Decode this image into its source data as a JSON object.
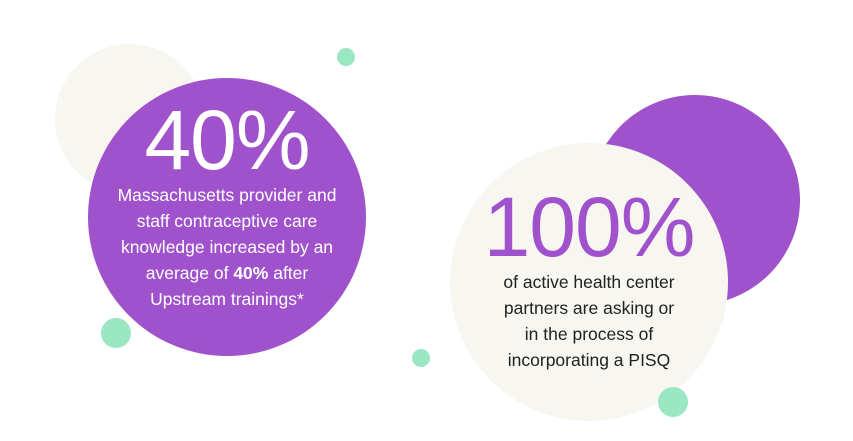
{
  "colors": {
    "purple": "#a052cc",
    "cream": "#f7f6f0",
    "mint": "#9be6c3"
  },
  "stat_left": {
    "value": "40%",
    "lines": [
      "Massachusetts provider and",
      "staff contraceptive care",
      "knowledge increased by an"
    ],
    "line4_before": "average of ",
    "line4_bold": "40%",
    "line4_after": " after",
    "line5": "Upstream trainings*"
  },
  "stat_right": {
    "value": "100%",
    "lines": [
      "of active health center",
      "partners are asking or",
      "in the process of",
      "incorporating a PISQ"
    ]
  }
}
